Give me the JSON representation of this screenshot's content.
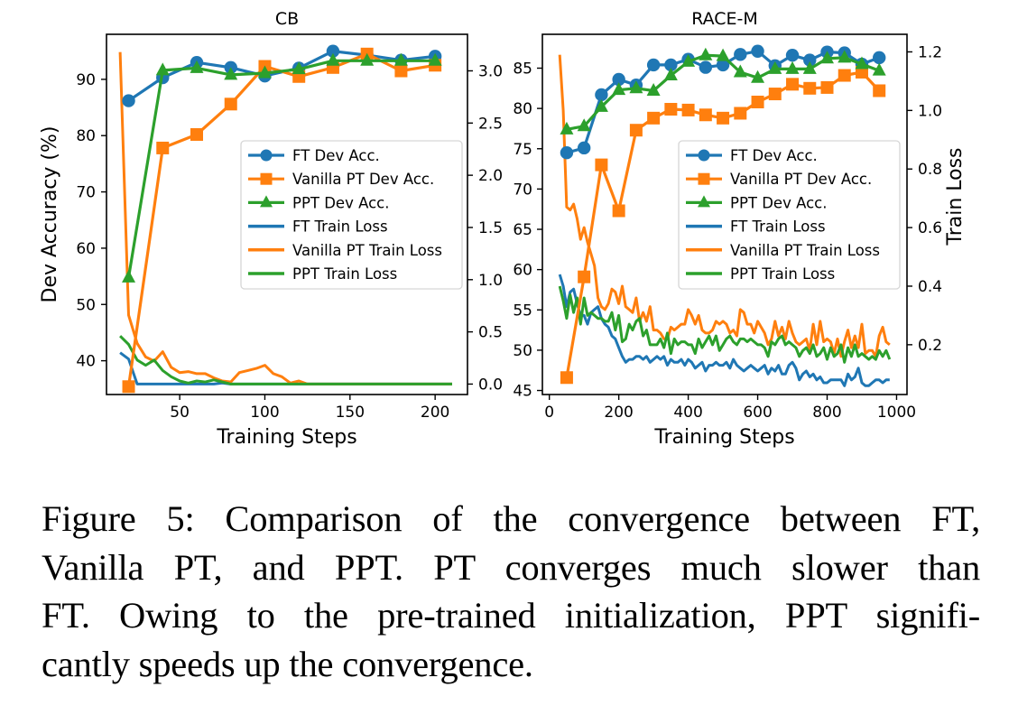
{
  "chart_data": [
    {
      "type": "line",
      "title": "CB",
      "xlabel": "Training Steps",
      "ylabel": "Dev Accuracy (%)",
      "y2label": "",
      "xlim": [
        7,
        219
      ],
      "ylim": [
        34,
        98
      ],
      "y2lim": [
        -0.1,
        3.35
      ],
      "xticks": [
        50,
        100,
        150,
        200
      ],
      "yticks": [
        40,
        50,
        60,
        70,
        80,
        90
      ],
      "y2ticks": [
        0.0,
        0.5,
        1.0,
        1.5,
        2.0,
        2.5,
        3.0
      ],
      "xtick_labels": [
        "50",
        "100",
        "150",
        "200"
      ],
      "ytick_labels": [
        "40",
        "50",
        "60",
        "70",
        "80",
        "90"
      ],
      "y2tick_labels": [
        "0.0",
        "0.5",
        "1.0",
        "1.5",
        "2.0",
        "2.5",
        "3.0"
      ],
      "grid": false,
      "legend_position": "center-right",
      "series": [
        {
          "name": "FT Dev Acc.",
          "axis": "left",
          "marker": "circle",
          "color": "#1f77b4",
          "x": [
            20,
            40,
            60,
            80,
            100,
            120,
            140,
            160,
            180,
            200
          ],
          "y": [
            86.2,
            90.3,
            93.0,
            92.1,
            90.6,
            92.0,
            95.0,
            94.3,
            93.4,
            94.1
          ]
        },
        {
          "name": "Vanilla PT Dev Acc.",
          "axis": "left",
          "marker": "square",
          "color": "#ff7f0e",
          "x": [
            20,
            40,
            60,
            80,
            100,
            120,
            140,
            160,
            180,
            200
          ],
          "y": [
            35.4,
            77.8,
            80.2,
            85.6,
            92.3,
            90.5,
            92.1,
            94.5,
            91.5,
            92.5
          ]
        },
        {
          "name": "PPT Dev Acc.",
          "axis": "left",
          "marker": "triangle",
          "color": "#2ca02c",
          "x": [
            20,
            40,
            60,
            80,
            100,
            120,
            140,
            160,
            180,
            200
          ],
          "y": [
            54.8,
            91.6,
            92.0,
            90.8,
            91.1,
            91.8,
            93.3,
            93.3,
            93.3,
            93.3
          ]
        },
        {
          "name": "FT Train Loss",
          "axis": "right",
          "marker": "none",
          "color": "#1f77b4",
          "x": [
            15,
            20,
            25,
            30,
            35,
            40,
            50,
            60,
            70,
            75,
            80,
            100,
            150,
            210
          ],
          "y": [
            0.3,
            0.24,
            0.0,
            0.0,
            0.0,
            0.0,
            0.0,
            0.0,
            0.0,
            0.01,
            0.0,
            0.0,
            0.0,
            0.0
          ]
        },
        {
          "name": "Vanilla PT Train Loss",
          "axis": "right",
          "marker": "none",
          "color": "#ff7f0e",
          "x": [
            15,
            20,
            25,
            30,
            35,
            40,
            45,
            50,
            55,
            60,
            65,
            70,
            75,
            80,
            85,
            90,
            95,
            100,
            105,
            110,
            115,
            120,
            125,
            130,
            210
          ],
          "y": [
            3.18,
            0.66,
            0.39,
            0.26,
            0.22,
            0.31,
            0.16,
            0.11,
            0.12,
            0.1,
            0.1,
            0.06,
            0.03,
            0.02,
            0.11,
            0.13,
            0.15,
            0.18,
            0.1,
            0.07,
            0.01,
            0.03,
            0.0,
            0.0,
            0.0
          ]
        },
        {
          "name": "PPT Train Loss",
          "axis": "right",
          "marker": "none",
          "color": "#2ca02c",
          "x": [
            15,
            20,
            25,
            30,
            35,
            40,
            45,
            50,
            55,
            60,
            65,
            70,
            75,
            80,
            90,
            100,
            150,
            210
          ],
          "y": [
            0.46,
            0.38,
            0.23,
            0.18,
            0.23,
            0.13,
            0.07,
            0.03,
            0.01,
            0.03,
            0.02,
            0.04,
            0.02,
            0.0,
            0.0,
            0.0,
            0.0,
            0.0
          ]
        }
      ]
    },
    {
      "type": "line",
      "title": "RACE-M",
      "xlabel": "Training Steps",
      "ylabel": "",
      "y2label": "Train Loss",
      "xlim": [
        -20,
        1030
      ],
      "ylim": [
        44.5,
        89.2
      ],
      "y2lim": [
        0.03,
        1.26
      ],
      "xticks": [
        0,
        200,
        400,
        600,
        800,
        1000
      ],
      "yticks": [
        45,
        50,
        55,
        60,
        65,
        70,
        75,
        80,
        85
      ],
      "y2ticks": [
        0.2,
        0.4,
        0.6,
        0.8,
        1.0,
        1.2
      ],
      "xtick_labels": [
        "0",
        "200",
        "400",
        "600",
        "800",
        "1000"
      ],
      "ytick_labels": [
        "45",
        "50",
        "55",
        "60",
        "65",
        "70",
        "75",
        "80",
        "85"
      ],
      "y2tick_labels": [
        "0.2",
        "0.4",
        "0.6",
        "0.8",
        "1.0",
        "1.2"
      ],
      "grid": false,
      "legend_position": "center-right",
      "series": [
        {
          "name": "FT Dev Acc.",
          "axis": "left",
          "marker": "circle",
          "color": "#1f77b4",
          "x": [
            50,
            100,
            150,
            200,
            250,
            300,
            350,
            400,
            450,
            500,
            550,
            600,
            650,
            700,
            750,
            800,
            850,
            900,
            950
          ],
          "y": [
            74.5,
            75.1,
            81.7,
            83.6,
            82.9,
            85.4,
            85.4,
            86.1,
            85.1,
            85.4,
            86.7,
            87.1,
            85.3,
            86.6,
            86.0,
            87.0,
            86.9,
            85.5,
            86.3
          ]
        },
        {
          "name": "Vanilla PT Dev Acc.",
          "axis": "left",
          "marker": "square",
          "color": "#ff7f0e",
          "x": [
            50,
            100,
            150,
            200,
            250,
            300,
            350,
            400,
            450,
            500,
            550,
            600,
            650,
            700,
            750,
            800,
            850,
            900,
            950
          ],
          "y": [
            46.6,
            59.1,
            73.0,
            67.3,
            77.3,
            78.8,
            79.9,
            79.8,
            79.2,
            78.8,
            79.4,
            80.8,
            81.8,
            83.0,
            82.5,
            82.6,
            84.1,
            84.5,
            82.2
          ]
        },
        {
          "name": "PPT Dev Acc.",
          "axis": "left",
          "marker": "triangle",
          "color": "#2ca02c",
          "x": [
            50,
            100,
            150,
            200,
            250,
            300,
            350,
            400,
            450,
            500,
            550,
            600,
            650,
            700,
            750,
            800,
            850,
            900,
            950
          ],
          "y": [
            77.4,
            77.8,
            80.2,
            82.3,
            82.5,
            82.2,
            84.1,
            85.8,
            86.6,
            86.5,
            84.5,
            83.8,
            84.9,
            84.9,
            84.9,
            86.2,
            86.3,
            85.5,
            84.7
          ]
        },
        {
          "name": "FT Train Loss",
          "axis": "right",
          "marker": "none",
          "color": "#1f77b4",
          "x": [
            30,
            40,
            50,
            60,
            70,
            80,
            90,
            100,
            110,
            120,
            130,
            140,
            150,
            160,
            170,
            180,
            190,
            200,
            210,
            220,
            230,
            240,
            250,
            260,
            270,
            280,
            290,
            300,
            310,
            320,
            330,
            340,
            350,
            360,
            370,
            380,
            390,
            400,
            410,
            420,
            430,
            440,
            450,
            460,
            470,
            480,
            490,
            500,
            510,
            520,
            530,
            540,
            550,
            560,
            570,
            580,
            590,
            600,
            610,
            620,
            630,
            640,
            650,
            660,
            670,
            680,
            690,
            700,
            710,
            720,
            730,
            740,
            750,
            760,
            770,
            780,
            790,
            800,
            810,
            820,
            830,
            840,
            850,
            860,
            870,
            880,
            890,
            900,
            910,
            920,
            930,
            940,
            950,
            960,
            970,
            980
          ],
          "y": [
            0.44,
            0.4,
            0.33,
            0.38,
            0.39,
            0.34,
            0.3,
            0.3,
            0.27,
            0.31,
            0.32,
            0.33,
            0.29,
            0.27,
            0.26,
            0.23,
            0.22,
            0.19,
            0.16,
            0.14,
            0.15,
            0.15,
            0.16,
            0.16,
            0.15,
            0.16,
            0.14,
            0.15,
            0.16,
            0.15,
            0.16,
            0.13,
            0.15,
            0.14,
            0.14,
            0.15,
            0.13,
            0.15,
            0.14,
            0.12,
            0.13,
            0.14,
            0.11,
            0.13,
            0.13,
            0.14,
            0.13,
            0.13,
            0.14,
            0.12,
            0.15,
            0.13,
            0.12,
            0.11,
            0.12,
            0.13,
            0.12,
            0.11,
            0.12,
            0.13,
            0.1,
            0.12,
            0.11,
            0.13,
            0.1,
            0.1,
            0.13,
            0.14,
            0.12,
            0.08,
            0.1,
            0.11,
            0.09,
            0.1,
            0.08,
            0.09,
            0.07,
            0.07,
            0.08,
            0.08,
            0.08,
            0.08,
            0.06,
            0.1,
            0.08,
            0.09,
            0.12,
            0.07,
            0.06,
            0.06,
            0.07,
            0.08,
            0.08,
            0.07,
            0.08,
            0.08
          ]
        },
        {
          "name": "Vanilla PT Train Loss",
          "axis": "right",
          "marker": "none",
          "color": "#ff7f0e",
          "x": [
            30,
            40,
            50,
            60,
            70,
            80,
            90,
            100,
            110,
            120,
            130,
            140,
            150,
            160,
            170,
            180,
            190,
            200,
            210,
            220,
            230,
            240,
            250,
            260,
            270,
            280,
            290,
            300,
            310,
            320,
            330,
            340,
            350,
            360,
            370,
            380,
            390,
            400,
            410,
            420,
            430,
            440,
            450,
            460,
            470,
            480,
            490,
            500,
            510,
            520,
            530,
            540,
            550,
            560,
            570,
            580,
            590,
            600,
            610,
            620,
            630,
            640,
            650,
            660,
            670,
            680,
            690,
            700,
            710,
            720,
            730,
            740,
            750,
            760,
            770,
            780,
            790,
            800,
            810,
            820,
            830,
            840,
            850,
            860,
            870,
            880,
            890,
            900,
            910,
            920,
            930,
            940,
            950,
            960,
            970,
            980
          ],
          "y": [
            1.19,
            1.0,
            0.67,
            0.66,
            0.68,
            0.63,
            0.56,
            0.6,
            0.55,
            0.51,
            0.47,
            0.36,
            0.33,
            0.32,
            0.34,
            0.39,
            0.38,
            0.34,
            0.4,
            0.33,
            0.32,
            0.31,
            0.36,
            0.28,
            0.31,
            0.28,
            0.33,
            0.25,
            0.25,
            0.24,
            0.22,
            0.22,
            0.26,
            0.25,
            0.26,
            0.27,
            0.27,
            0.32,
            0.3,
            0.27,
            0.3,
            0.25,
            0.24,
            0.24,
            0.25,
            0.28,
            0.27,
            0.28,
            0.27,
            0.24,
            0.25,
            0.23,
            0.32,
            0.31,
            0.27,
            0.27,
            0.24,
            0.28,
            0.26,
            0.24,
            0.2,
            0.22,
            0.28,
            0.23,
            0.26,
            0.22,
            0.28,
            0.24,
            0.21,
            0.2,
            0.21,
            0.22,
            0.18,
            0.27,
            0.2,
            0.28,
            0.21,
            0.22,
            0.21,
            0.17,
            0.22,
            0.16,
            0.21,
            0.25,
            0.19,
            0.23,
            0.19,
            0.27,
            0.17,
            0.18,
            0.18,
            0.16,
            0.23,
            0.26,
            0.21,
            0.2
          ]
        },
        {
          "name": "PPT Train Loss",
          "axis": "right",
          "marker": "none",
          "color": "#2ca02c",
          "x": [
            30,
            40,
            50,
            60,
            70,
            80,
            90,
            100,
            110,
            120,
            130,
            140,
            150,
            160,
            170,
            180,
            190,
            200,
            210,
            220,
            230,
            240,
            250,
            260,
            270,
            280,
            290,
            300,
            310,
            320,
            330,
            340,
            350,
            360,
            370,
            380,
            390,
            400,
            410,
            420,
            430,
            440,
            450,
            460,
            470,
            480,
            490,
            500,
            510,
            520,
            530,
            540,
            550,
            560,
            570,
            580,
            590,
            600,
            610,
            620,
            630,
            640,
            650,
            660,
            670,
            680,
            690,
            700,
            710,
            720,
            730,
            740,
            750,
            760,
            770,
            780,
            790,
            800,
            810,
            820,
            830,
            840,
            850,
            860,
            870,
            880,
            890,
            900,
            910,
            920,
            930,
            940,
            950,
            960,
            970,
            980
          ],
          "y": [
            0.4,
            0.35,
            0.29,
            0.37,
            0.31,
            0.36,
            0.27,
            0.36,
            0.3,
            0.31,
            0.3,
            0.29,
            0.29,
            0.28,
            0.28,
            0.31,
            0.25,
            0.3,
            0.21,
            0.22,
            0.27,
            0.25,
            0.28,
            0.29,
            0.23,
            0.25,
            0.2,
            0.2,
            0.2,
            0.22,
            0.19,
            0.24,
            0.17,
            0.22,
            0.2,
            0.21,
            0.21,
            0.2,
            0.2,
            0.17,
            0.22,
            0.19,
            0.21,
            0.23,
            0.2,
            0.23,
            0.18,
            0.2,
            0.22,
            0.23,
            0.21,
            0.2,
            0.22,
            0.22,
            0.21,
            0.22,
            0.21,
            0.2,
            0.2,
            0.19,
            0.16,
            0.21,
            0.2,
            0.22,
            0.23,
            0.2,
            0.21,
            0.2,
            0.19,
            0.16,
            0.18,
            0.19,
            0.17,
            0.2,
            0.16,
            0.17,
            0.19,
            0.15,
            0.19,
            0.16,
            0.17,
            0.2,
            0.14,
            0.19,
            0.16,
            0.2,
            0.16,
            0.17,
            0.16,
            0.15,
            0.16,
            0.15,
            0.18,
            0.16,
            0.18,
            0.15
          ]
        }
      ]
    }
  ],
  "caption": {
    "lines": [
      "Figure 5: Comparison of the convergence between FT,",
      "Vanilla PT, and PPT. PT converges much slower than",
      "FT. Owing to the pre-trained initialization, PPT signifi-",
      "cantly speeds up the convergence."
    ]
  }
}
